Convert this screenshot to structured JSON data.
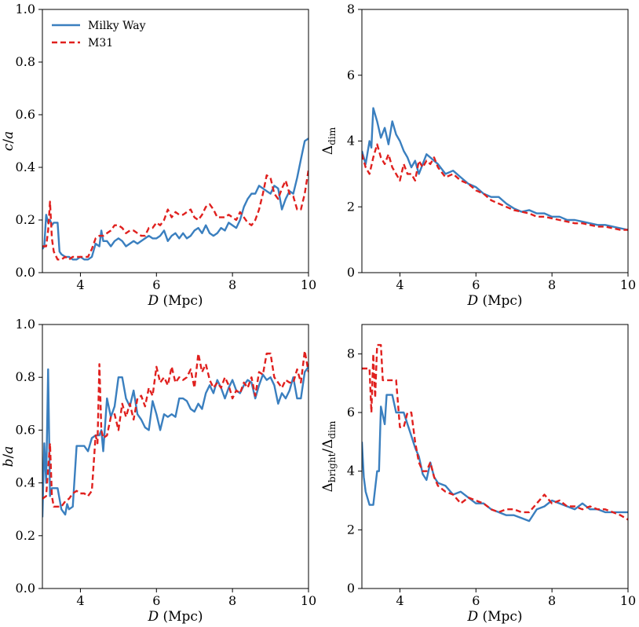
{
  "colors": {
    "milky_way": "#3a7fbf",
    "m31": "#e0201e",
    "axis": "#000000"
  },
  "chart_data": [
    {
      "type": "line",
      "panel": "top-left",
      "xlabel": "D (Mpc)",
      "ylabel": "c/a",
      "xlim": [
        3,
        10
      ],
      "ylim": [
        0,
        1
      ],
      "xticks": [
        "4",
        "6",
        "8",
        "10"
      ],
      "yticks": [
        "0.0",
        "0.2",
        "0.4",
        "0.6",
        "0.8",
        "1.0"
      ],
      "legend": {
        "placement": "top-left",
        "entries": [
          "Milky Way",
          "M31"
        ]
      },
      "series": [
        {
          "name": "Milky Way",
          "x": [
            3.0,
            3.05,
            3.1,
            3.15,
            3.2,
            3.25,
            3.3,
            3.4,
            3.45,
            3.5,
            3.6,
            3.7,
            3.8,
            3.9,
            4.0,
            4.1,
            4.2,
            4.3,
            4.4,
            4.5,
            4.55,
            4.6,
            4.7,
            4.8,
            4.9,
            5.0,
            5.1,
            5.2,
            5.3,
            5.4,
            5.5,
            5.6,
            5.7,
            5.8,
            5.9,
            6.0,
            6.1,
            6.2,
            6.3,
            6.4,
            6.5,
            6.6,
            6.7,
            6.8,
            6.9,
            7.0,
            7.1,
            7.2,
            7.3,
            7.4,
            7.5,
            7.6,
            7.7,
            7.8,
            7.9,
            8.0,
            8.1,
            8.2,
            8.3,
            8.4,
            8.5,
            8.6,
            8.7,
            8.8,
            8.9,
            9.0,
            9.1,
            9.2,
            9.3,
            9.4,
            9.5,
            9.6,
            9.7,
            9.8,
            9.9,
            10.0
          ],
          "y": [
            0.09,
            0.1,
            0.22,
            0.19,
            0.2,
            0.18,
            0.19,
            0.19,
            0.08,
            0.07,
            0.06,
            0.06,
            0.05,
            0.05,
            0.06,
            0.05,
            0.05,
            0.06,
            0.11,
            0.1,
            0.16,
            0.12,
            0.12,
            0.1,
            0.12,
            0.13,
            0.12,
            0.1,
            0.11,
            0.12,
            0.11,
            0.12,
            0.13,
            0.14,
            0.13,
            0.13,
            0.14,
            0.16,
            0.12,
            0.14,
            0.15,
            0.13,
            0.15,
            0.13,
            0.14,
            0.16,
            0.17,
            0.15,
            0.18,
            0.15,
            0.14,
            0.15,
            0.17,
            0.16,
            0.19,
            0.18,
            0.17,
            0.2,
            0.25,
            0.28,
            0.3,
            0.3,
            0.33,
            0.32,
            0.31,
            0.3,
            0.33,
            0.32,
            0.24,
            0.28,
            0.31,
            0.3,
            0.36,
            0.43,
            0.5,
            0.51
          ]
        },
        {
          "name": "M31",
          "x": [
            3.0,
            3.1,
            3.15,
            3.2,
            3.25,
            3.3,
            3.4,
            3.5,
            3.6,
            3.7,
            3.8,
            3.9,
            4.0,
            4.1,
            4.2,
            4.3,
            4.4,
            4.5,
            4.6,
            4.7,
            4.8,
            4.9,
            5.0,
            5.1,
            5.2,
            5.3,
            5.4,
            5.5,
            5.6,
            5.7,
            5.8,
            5.9,
            6.0,
            6.1,
            6.2,
            6.3,
            6.4,
            6.5,
            6.6,
            6.7,
            6.8,
            6.9,
            7.0,
            7.1,
            7.2,
            7.3,
            7.4,
            7.5,
            7.6,
            7.7,
            7.8,
            7.9,
            8.0,
            8.1,
            8.2,
            8.3,
            8.4,
            8.5,
            8.6,
            8.7,
            8.8,
            8.9,
            9.0,
            9.1,
            9.2,
            9.3,
            9.4,
            9.5,
            9.6,
            9.7,
            9.8,
            9.9,
            10.0
          ],
          "y": [
            0.1,
            0.1,
            0.16,
            0.27,
            0.13,
            0.08,
            0.05,
            0.05,
            0.06,
            0.05,
            0.06,
            0.06,
            0.06,
            0.06,
            0.06,
            0.09,
            0.13,
            0.14,
            0.14,
            0.15,
            0.16,
            0.18,
            0.18,
            0.17,
            0.15,
            0.16,
            0.16,
            0.15,
            0.14,
            0.14,
            0.17,
            0.17,
            0.19,
            0.18,
            0.2,
            0.24,
            0.21,
            0.23,
            0.22,
            0.22,
            0.23,
            0.24,
            0.21,
            0.2,
            0.22,
            0.25,
            0.26,
            0.24,
            0.21,
            0.21,
            0.21,
            0.22,
            0.21,
            0.2,
            0.23,
            0.21,
            0.19,
            0.18,
            0.2,
            0.24,
            0.3,
            0.37,
            0.36,
            0.3,
            0.28,
            0.32,
            0.35,
            0.3,
            0.29,
            0.24,
            0.24,
            0.3,
            0.39
          ]
        }
      ]
    },
    {
      "type": "line",
      "panel": "top-right",
      "xlabel": "D (Mpc)",
      "ylabel": "Δdim",
      "xlim": [
        3,
        10
      ],
      "ylim": [
        0,
        8
      ],
      "xticks": [
        "4",
        "6",
        "8",
        "10"
      ],
      "yticks": [
        "0",
        "2",
        "4",
        "6",
        "8"
      ],
      "series": [
        {
          "name": "Milky Way",
          "x": [
            3.0,
            3.1,
            3.2,
            3.25,
            3.3,
            3.4,
            3.5,
            3.6,
            3.7,
            3.8,
            3.9,
            4.0,
            4.1,
            4.2,
            4.3,
            4.4,
            4.5,
            4.6,
            4.7,
            4.8,
            4.9,
            5.0,
            5.2,
            5.4,
            5.6,
            5.8,
            6.0,
            6.2,
            6.4,
            6.6,
            6.8,
            7.0,
            7.2,
            7.4,
            7.6,
            7.8,
            8.0,
            8.2,
            8.4,
            8.6,
            8.8,
            9.0,
            9.2,
            9.4,
            9.6,
            9.8,
            10.0
          ],
          "y": [
            3.7,
            3.3,
            4.0,
            3.8,
            5.0,
            4.6,
            4.1,
            4.4,
            3.9,
            4.6,
            4.2,
            4.0,
            3.7,
            3.5,
            3.2,
            3.4,
            3.0,
            3.3,
            3.6,
            3.5,
            3.4,
            3.3,
            3.0,
            3.1,
            2.9,
            2.7,
            2.6,
            2.4,
            2.3,
            2.3,
            2.1,
            1.95,
            1.85,
            1.9,
            1.8,
            1.8,
            1.7,
            1.7,
            1.6,
            1.6,
            1.55,
            1.5,
            1.45,
            1.45,
            1.4,
            1.35,
            1.3
          ]
        },
        {
          "name": "M31",
          "x": [
            3.0,
            3.1,
            3.2,
            3.3,
            3.4,
            3.5,
            3.6,
            3.7,
            3.8,
            3.9,
            4.0,
            4.1,
            4.2,
            4.3,
            4.4,
            4.5,
            4.6,
            4.7,
            4.8,
            4.9,
            5.0,
            5.2,
            5.4,
            5.6,
            5.8,
            6.0,
            6.2,
            6.4,
            6.6,
            6.8,
            7.0,
            7.2,
            7.4,
            7.6,
            7.8,
            8.0,
            8.2,
            8.4,
            8.6,
            8.8,
            9.0,
            9.2,
            9.4,
            9.6,
            9.8,
            10.0
          ],
          "y": [
            3.6,
            3.2,
            3.0,
            3.5,
            3.9,
            3.5,
            3.3,
            3.6,
            3.2,
            3.0,
            2.8,
            3.3,
            3.0,
            3.0,
            2.8,
            3.4,
            3.2,
            3.4,
            3.3,
            3.5,
            3.2,
            2.9,
            3.0,
            2.8,
            2.7,
            2.5,
            2.4,
            2.2,
            2.1,
            2.0,
            1.9,
            1.85,
            1.8,
            1.7,
            1.7,
            1.65,
            1.6,
            1.55,
            1.5,
            1.5,
            1.45,
            1.4,
            1.4,
            1.35,
            1.3,
            1.3
          ]
        }
      ]
    },
    {
      "type": "line",
      "panel": "bottom-left",
      "xlabel": "D (Mpc)",
      "ylabel": "b/a",
      "xlim": [
        3,
        10
      ],
      "ylim": [
        0,
        1
      ],
      "xticks": [
        "4",
        "6",
        "8",
        "10"
      ],
      "yticks": [
        "0.0",
        "0.2",
        "0.4",
        "0.6",
        "0.8",
        "1.0"
      ],
      "series": [
        {
          "name": "Milky Way",
          "x": [
            3.0,
            3.05,
            3.1,
            3.15,
            3.2,
            3.25,
            3.3,
            3.4,
            3.5,
            3.6,
            3.65,
            3.7,
            3.8,
            3.9,
            4.0,
            4.1,
            4.2,
            4.3,
            4.4,
            4.5,
            4.55,
            4.6,
            4.7,
            4.8,
            4.9,
            5.0,
            5.1,
            5.2,
            5.3,
            5.4,
            5.5,
            5.6,
            5.7,
            5.8,
            5.9,
            6.0,
            6.1,
            6.2,
            6.3,
            6.4,
            6.5,
            6.6,
            6.7,
            6.8,
            6.9,
            7.0,
            7.1,
            7.2,
            7.3,
            7.4,
            7.5,
            7.6,
            7.7,
            7.8,
            7.9,
            8.0,
            8.1,
            8.2,
            8.3,
            8.4,
            8.5,
            8.6,
            8.7,
            8.8,
            8.9,
            9.0,
            9.1,
            9.2,
            9.3,
            9.4,
            9.5,
            9.6,
            9.7,
            9.8,
            9.9,
            10.0
          ],
          "y": [
            0.27,
            0.55,
            0.4,
            0.83,
            0.35,
            0.38,
            0.38,
            0.38,
            0.3,
            0.28,
            0.32,
            0.3,
            0.31,
            0.54,
            0.54,
            0.54,
            0.52,
            0.57,
            0.58,
            0.58,
            0.6,
            0.52,
            0.72,
            0.65,
            0.69,
            0.8,
            0.8,
            0.72,
            0.69,
            0.75,
            0.66,
            0.64,
            0.61,
            0.6,
            0.71,
            0.66,
            0.6,
            0.66,
            0.65,
            0.66,
            0.65,
            0.72,
            0.72,
            0.71,
            0.68,
            0.67,
            0.7,
            0.68,
            0.74,
            0.77,
            0.74,
            0.79,
            0.76,
            0.72,
            0.76,
            0.79,
            0.75,
            0.74,
            0.77,
            0.79,
            0.78,
            0.72,
            0.77,
            0.81,
            0.79,
            0.8,
            0.77,
            0.7,
            0.74,
            0.72,
            0.75,
            0.8,
            0.72,
            0.72,
            0.82,
            0.84
          ]
        },
        {
          "name": "M31",
          "x": [
            3.0,
            3.1,
            3.2,
            3.25,
            3.3,
            3.4,
            3.5,
            3.6,
            3.7,
            3.8,
            3.9,
            4.0,
            4.1,
            4.2,
            4.3,
            4.4,
            4.45,
            4.5,
            4.55,
            4.6,
            4.7,
            4.8,
            4.9,
            5.0,
            5.1,
            5.2,
            5.3,
            5.4,
            5.5,
            5.6,
            5.7,
            5.8,
            5.9,
            6.0,
            6.1,
            6.2,
            6.3,
            6.4,
            6.5,
            6.6,
            6.7,
            6.8,
            6.9,
            7.0,
            7.1,
            7.2,
            7.3,
            7.4,
            7.5,
            7.6,
            7.7,
            7.8,
            7.9,
            8.0,
            8.1,
            8.2,
            8.3,
            8.4,
            8.5,
            8.6,
            8.7,
            8.8,
            8.9,
            9.0,
            9.1,
            9.2,
            9.3,
            9.4,
            9.5,
            9.6,
            9.7,
            9.8,
            9.9,
            10.0
          ],
          "y": [
            0.34,
            0.35,
            0.55,
            0.35,
            0.31,
            0.31,
            0.31,
            0.33,
            0.34,
            0.36,
            0.37,
            0.36,
            0.36,
            0.35,
            0.37,
            0.58,
            0.55,
            0.85,
            0.6,
            0.57,
            0.58,
            0.65,
            0.66,
            0.6,
            0.7,
            0.65,
            0.7,
            0.64,
            0.72,
            0.73,
            0.69,
            0.76,
            0.73,
            0.84,
            0.78,
            0.8,
            0.77,
            0.84,
            0.78,
            0.8,
            0.79,
            0.8,
            0.83,
            0.76,
            0.89,
            0.82,
            0.85,
            0.79,
            0.76,
            0.78,
            0.76,
            0.8,
            0.77,
            0.72,
            0.75,
            0.74,
            0.78,
            0.76,
            0.8,
            0.73,
            0.82,
            0.81,
            0.89,
            0.89,
            0.8,
            0.78,
            0.76,
            0.79,
            0.78,
            0.78,
            0.83,
            0.78,
            0.9,
            0.82
          ]
        }
      ]
    },
    {
      "type": "line",
      "panel": "bottom-right",
      "xlabel": "D (Mpc)",
      "ylabel": "Δbright/Δdim",
      "xlim": [
        3,
        10
      ],
      "ylim": [
        0,
        9
      ],
      "xticks": [
        "4",
        "6",
        "8",
        "10"
      ],
      "yticks": [
        "0",
        "2",
        "4",
        "6",
        "8"
      ],
      "series": [
        {
          "name": "Milky Way",
          "x": [
            3.0,
            3.05,
            3.1,
            3.2,
            3.3,
            3.4,
            3.45,
            3.5,
            3.6,
            3.65,
            3.7,
            3.8,
            3.9,
            4.0,
            4.1,
            4.2,
            4.3,
            4.4,
            4.5,
            4.6,
            4.7,
            4.8,
            4.9,
            5.0,
            5.2,
            5.4,
            5.6,
            5.8,
            6.0,
            6.2,
            6.4,
            6.6,
            6.8,
            7.0,
            7.2,
            7.4,
            7.6,
            7.8,
            8.0,
            8.2,
            8.4,
            8.6,
            8.8,
            9.0,
            9.2,
            9.4,
            9.6,
            9.8,
            10.0
          ],
          "y": [
            5.0,
            3.8,
            3.3,
            2.85,
            2.85,
            4.0,
            4.0,
            6.2,
            5.6,
            6.6,
            6.6,
            6.6,
            6.0,
            6.0,
            6.0,
            5.6,
            5.2,
            4.8,
            4.5,
            3.9,
            3.7,
            4.3,
            3.8,
            3.6,
            3.5,
            3.2,
            3.3,
            3.1,
            2.9,
            2.9,
            2.7,
            2.6,
            2.5,
            2.5,
            2.4,
            2.3,
            2.7,
            2.8,
            3.0,
            2.9,
            2.8,
            2.7,
            2.9,
            2.7,
            2.7,
            2.6,
            2.6,
            2.6,
            2.6
          ]
        },
        {
          "name": "M31",
          "x": [
            3.0,
            3.1,
            3.2,
            3.25,
            3.3,
            3.35,
            3.4,
            3.45,
            3.5,
            3.55,
            3.6,
            3.7,
            3.8,
            3.9,
            4.0,
            4.1,
            4.2,
            4.3,
            4.4,
            4.5,
            4.6,
            4.7,
            4.8,
            4.9,
            5.0,
            5.2,
            5.4,
            5.6,
            5.8,
            6.0,
            6.2,
            6.4,
            6.6,
            6.8,
            7.0,
            7.2,
            7.4,
            7.6,
            7.8,
            8.0,
            8.2,
            8.4,
            8.6,
            8.8,
            9.0,
            9.2,
            9.4,
            9.6,
            9.8,
            10.0
          ],
          "y": [
            7.5,
            7.5,
            7.5,
            6.0,
            8.0,
            6.5,
            8.3,
            8.3,
            8.3,
            7.1,
            7.1,
            7.1,
            7.1,
            7.1,
            5.5,
            5.5,
            6.0,
            6.0,
            5.0,
            4.3,
            4.0,
            4.0,
            4.3,
            3.8,
            3.5,
            3.3,
            3.2,
            2.9,
            3.1,
            3.0,
            2.9,
            2.7,
            2.6,
            2.7,
            2.7,
            2.6,
            2.6,
            2.9,
            3.2,
            2.9,
            3.0,
            2.8,
            2.8,
            2.7,
            2.8,
            2.7,
            2.7,
            2.6,
            2.5,
            2.35
          ]
        }
      ]
    }
  ]
}
